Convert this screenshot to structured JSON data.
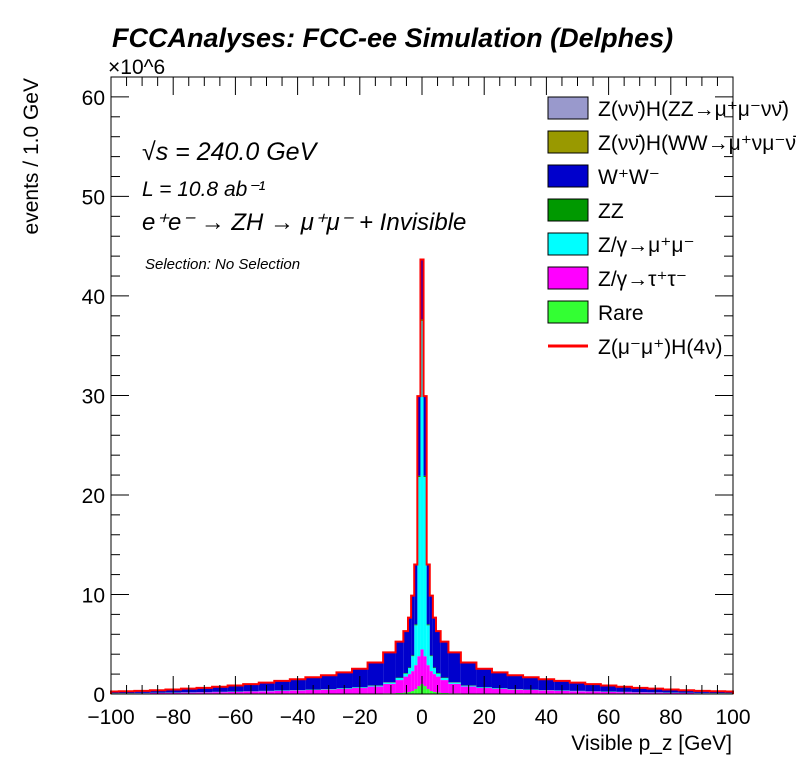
{
  "chart_data": {
    "type": "histogram-stacked",
    "title": "FCCAnalyses: FCC-ee Simulation (Delphes)",
    "xlabel": "Visible p_z [GeV]",
    "ylabel": "events / 1.0 GeV",
    "y_multiplier": "×10^6",
    "xlim": [
      -100,
      100
    ],
    "ylim": [
      0,
      62
    ],
    "xticks": [
      "−100",
      "−80",
      "−60",
      "−40",
      "−20",
      "0",
      "20",
      "40",
      "60",
      "80",
      "100"
    ],
    "yticks": [
      "0",
      "10",
      "20",
      "30",
      "40",
      "50",
      "60"
    ],
    "annotations": {
      "sqrt_s": "√s = 240.0 GeV",
      "luminosity": "L = 10.8 ab⁻¹",
      "process": "e⁺e⁻ → ZH → μ⁺μ⁻ + Invisible",
      "selection": "Selection: No Selection"
    },
    "x": [
      -100,
      -95,
      -90,
      -85,
      -80,
      -75,
      -70,
      -65,
      -60,
      -55,
      -50,
      -45,
      -40,
      -35,
      -30,
      -25,
      -20,
      -15,
      -10,
      -7,
      -5,
      -4,
      -3,
      -2,
      -1,
      0,
      1,
      2,
      3,
      4,
      5,
      7,
      10,
      15,
      20,
      25,
      30,
      35,
      40,
      45,
      50,
      55,
      60,
      65,
      70,
      75,
      80,
      85,
      90,
      95,
      100
    ],
    "series": [
      {
        "name": "Rare",
        "color": "#33ff33",
        "values": [
          0.01,
          0.01,
          0.01,
          0.01,
          0.01,
          0.01,
          0.01,
          0.01,
          0.01,
          0.01,
          0.01,
          0.02,
          0.02,
          0.02,
          0.02,
          0.03,
          0.04,
          0.05,
          0.07,
          0.1,
          0.15,
          0.2,
          0.3,
          0.5,
          0.8,
          1.0,
          0.8,
          0.5,
          0.3,
          0.2,
          0.15,
          0.1,
          0.07,
          0.05,
          0.04,
          0.03,
          0.02,
          0.02,
          0.02,
          0.02,
          0.01,
          0.01,
          0.01,
          0.01,
          0.01,
          0.01,
          0.01,
          0.01,
          0.01,
          0.01,
          0.01
        ]
      },
      {
        "name": "Z/γ→τ⁺τ⁻",
        "color": "#ff00ff",
        "values": [
          0.05,
          0.06,
          0.07,
          0.09,
          0.11,
          0.13,
          0.15,
          0.18,
          0.21,
          0.24,
          0.27,
          0.3,
          0.34,
          0.38,
          0.42,
          0.48,
          0.56,
          0.7,
          0.95,
          1.3,
          1.6,
          1.8,
          2.0,
          2.4,
          3.0,
          3.5,
          3.0,
          2.4,
          2.0,
          1.8,
          1.6,
          1.3,
          0.95,
          0.7,
          0.56,
          0.48,
          0.42,
          0.38,
          0.34,
          0.3,
          0.27,
          0.24,
          0.21,
          0.18,
          0.15,
          0.13,
          0.11,
          0.09,
          0.07,
          0.06,
          0.05
        ]
      },
      {
        "name": "Z/γ→μ⁺μ⁻",
        "color": "#00ffff",
        "values": [
          0.02,
          0.02,
          0.02,
          0.02,
          0.02,
          0.02,
          0.02,
          0.02,
          0.02,
          0.02,
          0.03,
          0.03,
          0.03,
          0.03,
          0.04,
          0.05,
          0.06,
          0.08,
          0.12,
          0.2,
          0.3,
          0.6,
          1.5,
          4.0,
          18.0,
          33.0,
          18.0,
          4.0,
          1.5,
          0.6,
          0.3,
          0.2,
          0.12,
          0.08,
          0.06,
          0.05,
          0.04,
          0.03,
          0.03,
          0.03,
          0.03,
          0.02,
          0.02,
          0.02,
          0.02,
          0.02,
          0.02,
          0.02,
          0.02,
          0.02,
          0.02
        ]
      },
      {
        "name": "ZZ",
        "color": "#009900",
        "values": [
          0.01,
          0.01,
          0.01,
          0.01,
          0.01,
          0.01,
          0.01,
          0.01,
          0.01,
          0.01,
          0.01,
          0.01,
          0.01,
          0.02,
          0.02,
          0.02,
          0.02,
          0.03,
          0.04,
          0.05,
          0.06,
          0.07,
          0.08,
          0.1,
          0.12,
          0.15,
          0.12,
          0.1,
          0.08,
          0.07,
          0.06,
          0.05,
          0.04,
          0.03,
          0.02,
          0.02,
          0.02,
          0.02,
          0.01,
          0.01,
          0.01,
          0.01,
          0.01,
          0.01,
          0.01,
          0.01,
          0.01,
          0.01,
          0.01,
          0.01,
          0.01
        ]
      },
      {
        "name": "W⁺W⁻",
        "color": "#0000cc",
        "values": [
          0.15,
          0.17,
          0.2,
          0.24,
          0.3,
          0.36,
          0.42,
          0.5,
          0.6,
          0.7,
          0.82,
          0.95,
          1.08,
          1.22,
          1.38,
          1.58,
          1.85,
          2.3,
          3.0,
          3.6,
          4.2,
          5.0,
          6.0,
          6.0,
          8.0,
          6.0,
          8.0,
          6.0,
          6.0,
          5.0,
          4.2,
          3.6,
          3.0,
          2.3,
          1.85,
          1.58,
          1.38,
          1.22,
          1.08,
          0.95,
          0.82,
          0.7,
          0.6,
          0.5,
          0.42,
          0.36,
          0.3,
          0.24,
          0.2,
          0.17,
          0.15
        ]
      },
      {
        "name": "Z(νν̄)H(WW→μ⁺νμ⁻ν̄)",
        "color": "#999900",
        "values": [
          0.005,
          0.005,
          0.005,
          0.005,
          0.005,
          0.005,
          0.005,
          0.005,
          0.005,
          0.005,
          0.005,
          0.005,
          0.005,
          0.005,
          0.005,
          0.005,
          0.005,
          0.005,
          0.005,
          0.005,
          0.005,
          0.005,
          0.005,
          0.005,
          0.005,
          0.005,
          0.005,
          0.005,
          0.005,
          0.005,
          0.005,
          0.005,
          0.005,
          0.005,
          0.005,
          0.005,
          0.005,
          0.005,
          0.005,
          0.005,
          0.005,
          0.005,
          0.005,
          0.005,
          0.005,
          0.005,
          0.005,
          0.005,
          0.005,
          0.005,
          0.005
        ]
      },
      {
        "name": "Z(νν̄)H(ZZ→μ⁺μ⁻νν̄)",
        "color": "#9999cc",
        "values": [
          0.002,
          0.002,
          0.002,
          0.002,
          0.002,
          0.002,
          0.002,
          0.002,
          0.002,
          0.002,
          0.002,
          0.002,
          0.002,
          0.002,
          0.002,
          0.002,
          0.002,
          0.002,
          0.002,
          0.002,
          0.002,
          0.002,
          0.002,
          0.002,
          0.002,
          0.002,
          0.002,
          0.002,
          0.002,
          0.002,
          0.002,
          0.002,
          0.002,
          0.002,
          0.002,
          0.002,
          0.002,
          0.002,
          0.002,
          0.002,
          0.002,
          0.002,
          0.002,
          0.002,
          0.002,
          0.002,
          0.002,
          0.002,
          0.002,
          0.002,
          0.002
        ]
      }
    ],
    "signal": {
      "name": "Z(μ⁻μ⁺)H(4ν)",
      "color": "#ff0000"
    },
    "legend": {
      "placement": "top-right",
      "entries": [
        {
          "label": "Z(νν̄)H(ZZ→μ⁺μ⁻νν̄)",
          "color": "#9999cc",
          "kind": "box"
        },
        {
          "label": "Z(νν̄)H(WW→μ⁺νμ⁻ν̄)",
          "color": "#999900",
          "kind": "box"
        },
        {
          "label": "W⁺W⁻",
          "color": "#0000cc",
          "kind": "box"
        },
        {
          "label": "ZZ",
          "color": "#009900",
          "kind": "box"
        },
        {
          "label": "Z/γ→μ⁺μ⁻",
          "color": "#00ffff",
          "kind": "box"
        },
        {
          "label": "Z/γ→τ⁺τ⁻",
          "color": "#ff00ff",
          "kind": "box"
        },
        {
          "label": "Rare",
          "color": "#33ff33",
          "kind": "box"
        },
        {
          "label": "Z(μ⁻μ⁺)H(4ν)",
          "color": "#ff0000",
          "kind": "line"
        }
      ]
    }
  }
}
